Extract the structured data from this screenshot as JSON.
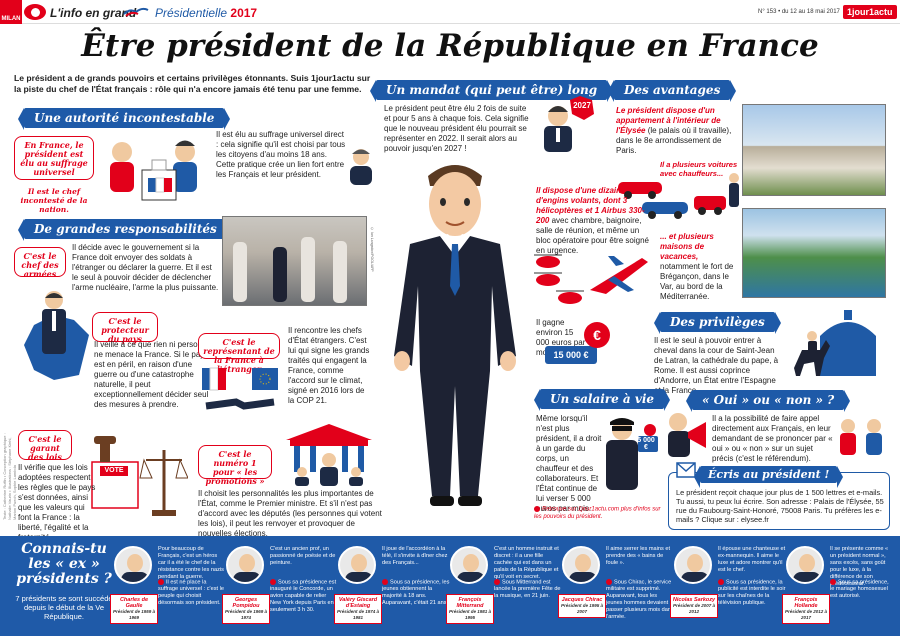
{
  "header": {
    "milan": "MILAN",
    "brand": "L'info en grand",
    "presidentielle_label": "Présidentielle",
    "presidentielle_year": "2017",
    "issue": "N° 153 • du 12 au 18 mai 2017",
    "jour_logo": "1jour1actu"
  },
  "title": "Être président de la République en France",
  "intro": "Le président a de grands pouvoirs et certains privilèges étonnants. Suis 1jour1actu sur la piste du chef de l'État français : rôle qui n'a encore jamais été tenu par une femme.",
  "autorite": {
    "banner": "Une autorité incontestable",
    "box1": "En France, le président est élu au suffrage universel",
    "box2": "Il est le chef incontesté de la nation.",
    "text": "Il est élu au suffrage universel direct : cela signifie qu'il est choisi par tous les citoyens d'au moins 18 ans. Cette pratique crée un lien fort entre les Français et leur président."
  },
  "responsabilites": {
    "banner": "De grandes responsabilités",
    "box_armees": "C'est le chef des armées",
    "text_armees": "Il décide avec le gouvernement si la France doit envoyer des soldats à l'étranger ou déclarer la guerre. Et il est le seul à pouvoir décider de déclencher l'arme nucléaire, l'arme la plus puissante.",
    "box_protecteur": "C'est le protecteur du pays",
    "text_protecteur": "Il veille à ce que rien ni personne ne menace la France. Si le pays est en péril, en raison d'une guerre ou d'une catastrophe naturelle, il peut exceptionnellement décider seul des mesures à prendre.",
    "box_garant": "C'est le garant des lois",
    "text_garant": "Il vérifie que les lois adoptées respectent les règles que le pays s'est données, ainsi que les valeurs qui font la France : la liberté, l'égalité et la fraternité.",
    "box_representant": "C'est le représentant de la France à l'étranger",
    "text_representant": "Il rencontre les chefs d'État étrangers. C'est lui qui signe les grands traités qui engagent la France, comme l'accord sur le climat, signé en 2016 lors de la COP 21.",
    "box_numero1": "C'est le numéro 1 pour « les promotions »",
    "text_numero1": "Il choisit les personnalités les plus importantes de l'État, comme le Premier ministre. Et s'il n'est pas d'accord avec les députés (les personnes qui votent les lois), il peut les renvoyer et provoquer de nouvelles élections.",
    "vote_label": "VOTE",
    "photo_credit": "© Ian Langsdon/POOL/AFP"
  },
  "mandat": {
    "banner": "Un mandat (qui peut être) long",
    "year_badge": "2027",
    "text": "Le président peut être élu 2 fois de suite et pour 5 ans à chaque fois. Cela signifie que le nouveau président élu pourrait se représenter en 2022. Il serait alors au pouvoir jusqu'en 2027 !"
  },
  "avantages": {
    "banner": "Des avantages",
    "elysee_red": "Le président dispose d'un appartement à l'intérieur de l'Élysée",
    "elysee_text": "(le palais où il travaille), dans le 8e arrondissement de Paris.",
    "voitures_red": "Il a plusieurs voitures avec chauffeurs...",
    "engins_red": "Il dispose d'une dizaine d'engins volants, dont 3 hélicoptères et 1 Airbus 330-200",
    "engins_text": "avec chambre, baignoire, salle de réunion, et même un bloc opératoire pour être soigné en urgence.",
    "vacances_red": "... et plusieurs maisons de vacances,",
    "vacances_text": "notamment le fort de Brégançon, dans le Var, au bord de la Méditerranée.",
    "gagne_text": "Il gagne environ 15 000 euros par mois.",
    "money_label": "15 000 €"
  },
  "privileges": {
    "banner": "Des privilèges",
    "text": "Il est le seul à pouvoir entrer à cheval dans la cour de Saint-Jean de Latran, la cathédrale du pape, à Rome. Il est aussi coprince d'Andorre, un État entre l'Espagne et la France."
  },
  "salaire": {
    "banner": "Un salaire à vie",
    "text": "Même lorsqu'il n'est plus président, il a droit à un garde du corps, un chauffeur et des collaborateurs. Et l'État continue de lui verser 5 000 euros par mois.",
    "money_label": "5 000 €",
    "link": "Retrouve sur 1jour1actu.com plus d'infos sur les pouvoirs du président."
  },
  "oui_non": {
    "banner": "« Oui » ou « non » ?",
    "text": "Il a la possibilité de faire appel directement aux Français, en leur demandant de se prononcer par « oui » ou « non » sur un sujet précis (c'est le référendum)."
  },
  "ecris": {
    "banner": "Écris au président !",
    "text": "Le président reçoit chaque jour plus de 1 500 lettres et e-mails. Tu aussi, tu peux lui écrire. Son adresse : Palais de l'Élysée, 55 rue du Faubourg-Saint-Honoré, 75008 Paris. Tu préfères les e-mails ? Clique sur : elysee.fr"
  },
  "presidents": {
    "title": "Connais-tu les « ex » présidents ?",
    "subtitle": "7 présidents se sont succédé depuis le début de la Ve République.",
    "list": [
      {
        "name": "Charles de Gaulle",
        "dates": "Président de 1959 à 1969",
        "desc": "Pour beaucoup de Français, c'est un héros car il a été le chef de la résistance contre les nazis pendant la guerre.",
        "fact": "Il est né place la suffrage universel : c'est le peuple qui choisit désormais son président."
      },
      {
        "name": "Georges Pompidou",
        "dates": "Président de 1969 à 1974",
        "desc": "C'est un ancien prof, un passionné de poésie et de peinture.",
        "fact": "Sous sa présidence est inauguré le Concorde, un avion capable de relier New York depuis Paris en seulement 3 h 30."
      },
      {
        "name": "Valéry Giscard d'Estaing",
        "dates": "Président de 1974 à 1981",
        "desc": "Il joue de l'accordéon à la télé, il s'invite à dîner chez des Français...",
        "fact": "Sous sa présidence, les jeunes obtiennent la majorité à 18 ans. Auparavant, c'était 21 ans."
      },
      {
        "name": "François Mitterrand",
        "dates": "Président de 1981 à 1995",
        "desc": "C'est un homme instruit et discret : il a une fille cachée qui est dans un palais de la République et qu'il voit en secret.",
        "fact": "Sous Mitterrand est lancée la première Fête de la musique, en 21 juin."
      },
      {
        "name": "Jacques Chirac",
        "dates": "Président de 1995 à 2007",
        "desc": "Il aime serrer les mains et prendre des « bains de foule ».",
        "fact": "Sous Chirac, le service militaire est supprimé. Auparavant, tous les jeunes hommes devaient passer plusieurs mois dans l'armée."
      },
      {
        "name": "Nicolas Sarkozy",
        "dates": "Président de 2007 à 2012",
        "desc": "Il épouse une chanteuse et ex-mannequin. Il aime le luxe et adore montrer qu'il est le chef.",
        "fact": "Sous sa présidence, la publicité est interdite le soir sur les chaînes de la télévision publique."
      },
      {
        "name": "François Hollande",
        "dates": "Président de 2012 à 2017",
        "desc": "Il se présente comme « un président normal », sans excès, sans goût pour le luxe, à la différence de son prédécesseur.",
        "fact": "Sous sa présidence, le mariage homosexuel est autorisé."
      }
    ]
  },
  "credits": "Texte : Catherine Ruffin • Conception graphique : Nathalie Vaurin • Illustrations : Stéphane Kiehl, Marion Puech, Sophie Lambda"
}
